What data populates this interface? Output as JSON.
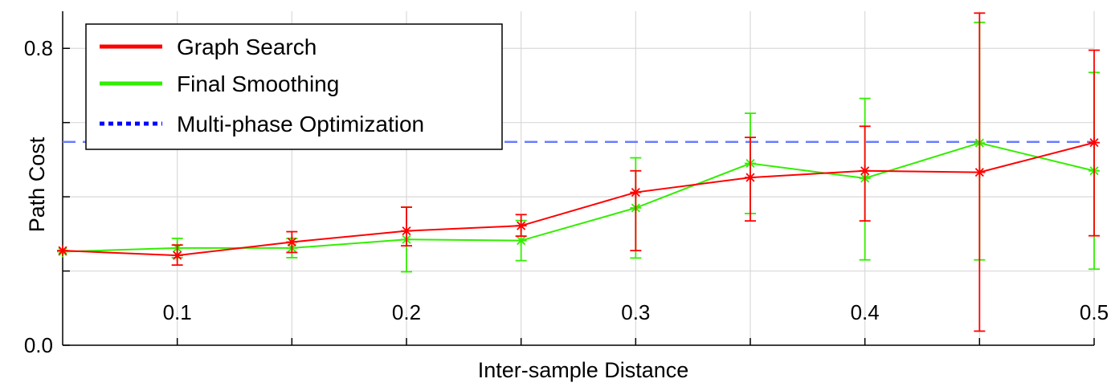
{
  "chart_data": {
    "type": "line",
    "xlabel": "Inter-sample Distance",
    "ylabel": "Path Cost",
    "xlim": [
      0.05,
      0.5
    ],
    "ylim": [
      0.0,
      0.9
    ],
    "xticks": [
      0.1,
      0.2,
      0.3,
      0.4,
      0.5
    ],
    "xtick_labels": [
      "0.1",
      "0.2",
      "0.3",
      "0.4",
      "0.5"
    ],
    "x_minor_grid": [
      0.15,
      0.25,
      0.35,
      0.45
    ],
    "yticks": [
      0.0,
      0.2,
      0.4,
      0.6,
      0.8
    ],
    "ytick_labels": [
      "0.0",
      "",
      "",
      "",
      "0.8"
    ],
    "grid": true,
    "legend_position": "top-left",
    "series": [
      {
        "name": "Graph Search",
        "color": "#ff0000",
        "style": "solid-star",
        "x": [
          0.05,
          0.1,
          0.15,
          0.2,
          0.25,
          0.3,
          0.35,
          0.4,
          0.45,
          0.5
        ],
        "y": [
          0.255,
          0.242,
          0.278,
          0.308,
          0.322,
          0.412,
          0.452,
          0.47,
          0.466,
          0.546
        ],
        "err_low": [
          0.272,
          0.216,
          0.25,
          0.268,
          0.294,
          0.255,
          0.335,
          0.335,
          0.038,
          0.295
        ],
        "err_high": [
          0.272,
          0.27,
          0.306,
          0.372,
          0.352,
          0.47,
          0.56,
          0.59,
          0.895,
          0.795
        ]
      },
      {
        "name": "Final Smoothing",
        "color": "#33ee00",
        "style": "solid-star",
        "x": [
          0.05,
          0.1,
          0.15,
          0.2,
          0.25,
          0.3,
          0.35,
          0.4,
          0.45,
          0.5
        ],
        "y": [
          0.252,
          0.262,
          0.262,
          0.285,
          0.282,
          0.37,
          0.49,
          0.45,
          0.545,
          0.47
        ],
        "err_low": [
          0.252,
          0.236,
          0.236,
          0.198,
          0.228,
          0.235,
          0.355,
          0.23,
          0.23,
          0.205
        ],
        "err_high": [
          0.252,
          0.288,
          0.288,
          0.372,
          0.336,
          0.505,
          0.625,
          0.665,
          0.87,
          0.735
        ]
      },
      {
        "name": "Multi-phase Optimization",
        "color": "#0000ff",
        "style": "dashed",
        "y_constant": 0.548
      }
    ]
  }
}
